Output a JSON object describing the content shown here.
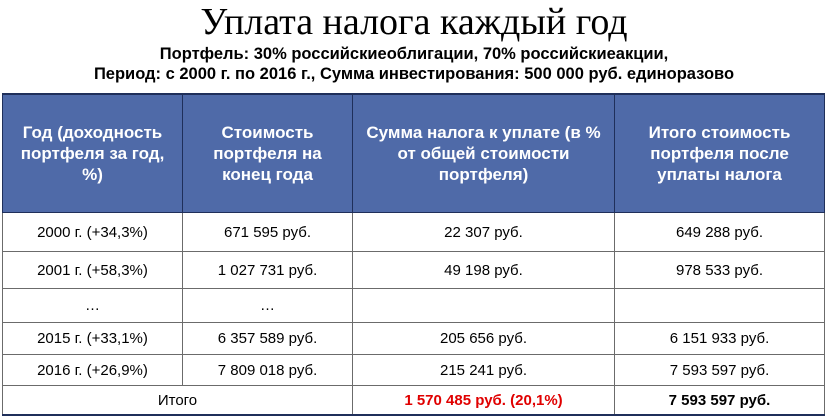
{
  "title": "Уплата налога каждый год",
  "subtitle_line1": "Портфель: 30% российскиеоблигации, 70%  российскиеакции,",
  "subtitle_line2": "Период: с 2000 г. по 2016 г., Сумма инвестирования: 500 000 руб. единоразово",
  "table": {
    "headers": [
      "Год (доходность портфеля за год, %)",
      "Стоимость портфеля на конец года",
      "Сумма налога к уплате (в % от общей стоимости портфеля)",
      "Итого стоимость портфеля после уплаты налога"
    ],
    "rows": [
      [
        "2000 г. (+34,3%)",
        "671 595 руб.",
        "22 307 руб.",
        "649 288 руб."
      ],
      [
        "2001 г. (+58,3%)",
        "1 027 731 руб.",
        "49 198 руб.",
        "978 533 руб."
      ],
      [
        "…",
        "…",
        "",
        ""
      ],
      [
        "2015 г. (+33,1%)",
        "6 357 589 руб.",
        "205 656 руб.",
        "6 151 933 руб."
      ],
      [
        "2016 г. (+26,9%)",
        "7 809 018 руб.",
        "215 241 руб.",
        "7 593 597 руб."
      ]
    ],
    "total": {
      "label": "Итого",
      "tax": "1 570 485 руб. (20,1%)",
      "value": "7 593 597 руб."
    }
  },
  "colors": {
    "header_background": "#4f6aa8",
    "header_text": "#ffffff",
    "total_tax_text": "#e00000"
  }
}
